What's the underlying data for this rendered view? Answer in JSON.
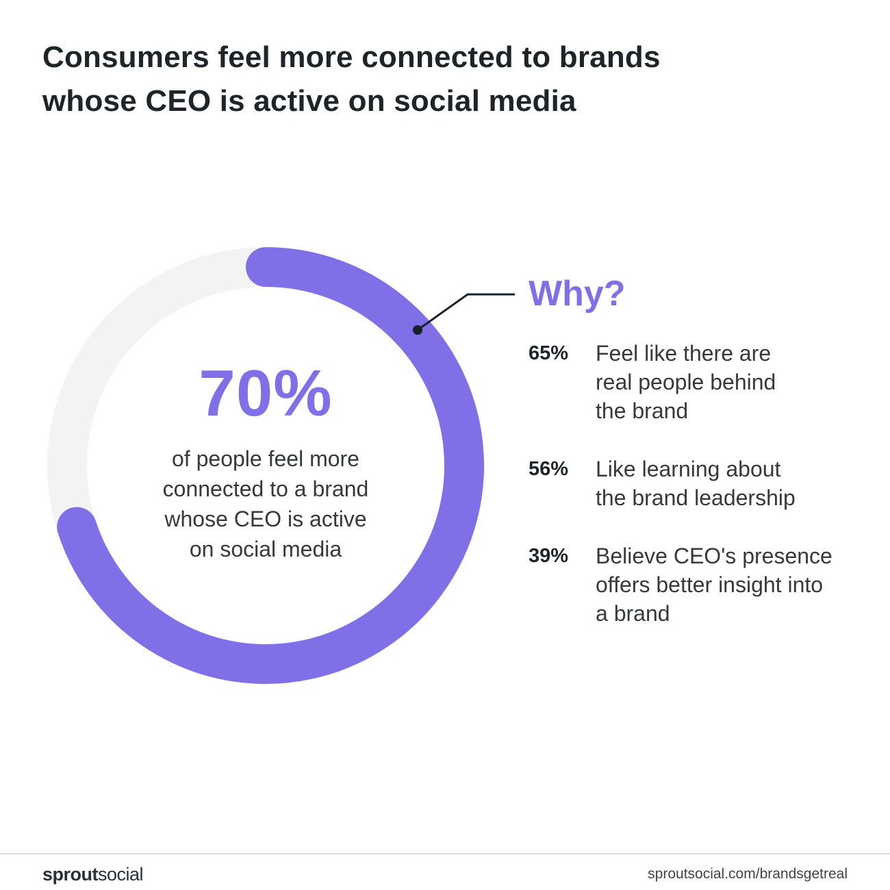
{
  "title": {
    "line1": "Consumers feel more connected to brands",
    "line2": "whose CEO is active on social media"
  },
  "chart_data": {
    "type": "pie",
    "slices": [
      {
        "label": "feel more connected",
        "value": 70
      },
      {
        "label": "",
        "value": 30
      }
    ],
    "value_label": "70%",
    "description_lines": [
      "of people feel more",
      "connected to a brand",
      "whose CEO is active",
      "on social media"
    ],
    "colors": {
      "filled": "#8070e8",
      "track": "#f3f3f3"
    }
  },
  "why": {
    "heading": "Why?",
    "heading_color": "#8070e8",
    "items": [
      {
        "percent": "65%",
        "lines": [
          "Feel like there are",
          "real people behind",
          "the brand"
        ]
      },
      {
        "percent": "56%",
        "lines": [
          "Like learning about",
          "the brand leadership"
        ]
      },
      {
        "percent": "39%",
        "lines": [
          "Believe CEO's presence",
          "offers better insight into",
          "a brand"
        ]
      }
    ]
  },
  "footer": {
    "brand_bold": "sprout",
    "brand_regular": "social",
    "url": "sproutsocial.com/brandsgetreal"
  },
  "colors": {
    "accent": "#8070e8",
    "text_dark": "#1e2529",
    "callout_line": "#17212b"
  }
}
